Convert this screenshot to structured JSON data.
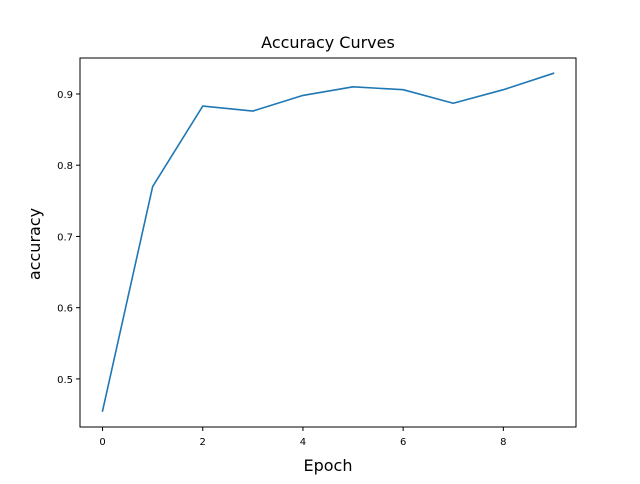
{
  "chart_data": {
    "type": "line",
    "title": "Accuracy Curves",
    "xlabel": "Epoch",
    "ylabel": "accuracy",
    "xlim": [
      -0.45,
      9.45
    ],
    "ylim": [
      0.4325,
      0.9505
    ],
    "xticks": [
      0,
      2,
      4,
      6,
      8
    ],
    "yticks": [
      0.5,
      0.6,
      0.7,
      0.8,
      0.9
    ],
    "xtick_labels": [
      "0",
      "2",
      "4",
      "6",
      "8"
    ],
    "ytick_labels": [
      "0.5",
      "0.6",
      "0.7",
      "0.8",
      "0.9"
    ],
    "grid": false,
    "series": [
      {
        "color": "#1f77b4",
        "x": [
          0,
          1,
          2,
          3,
          4,
          5,
          6,
          7,
          8,
          9
        ],
        "y": [
          0.455,
          0.77,
          0.883,
          0.876,
          0.898,
          0.91,
          0.906,
          0.887,
          0.906,
          0.929
        ]
      }
    ]
  }
}
